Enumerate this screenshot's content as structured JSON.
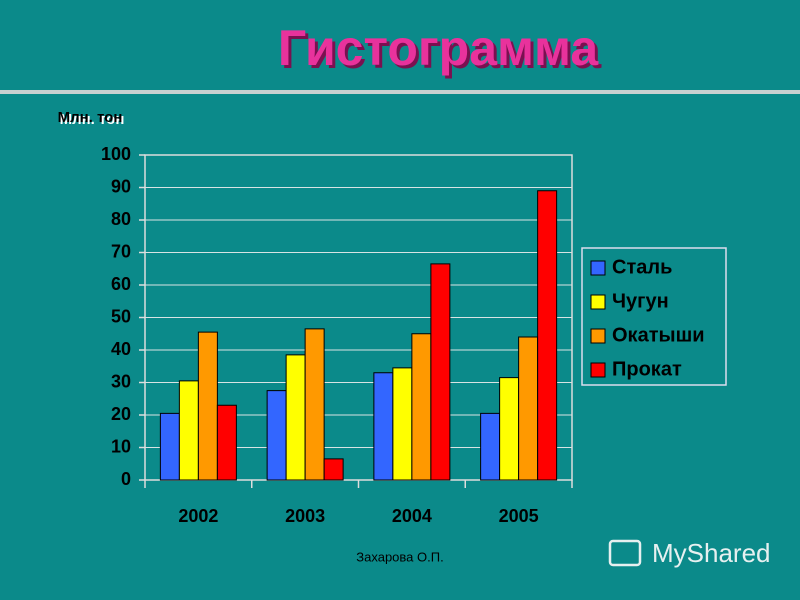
{
  "chart_data": {
    "type": "bar",
    "title": "Гистограмма",
    "y_label": "Млн. тон",
    "categories": [
      "2002",
      "2003",
      "2004",
      "2005"
    ],
    "series": [
      {
        "name": "Сталь",
        "color": "#3366ff",
        "values": [
          20.5,
          27.5,
          33,
          20.5
        ]
      },
      {
        "name": "Чугун",
        "color": "#ffff00",
        "values": [
          30.5,
          38.5,
          34.5,
          31.5
        ]
      },
      {
        "name": "Окатыши",
        "color": "#ff9900",
        "values": [
          45.5,
          46.5,
          45,
          44
        ]
      },
      {
        "name": "Прокат",
        "color": "#ff0000",
        "values": [
          23,
          6.5,
          66.5,
          89
        ]
      }
    ],
    "ylim": [
      0,
      100
    ],
    "yticks": [
      0,
      10,
      20,
      30,
      40,
      50,
      60,
      70,
      80,
      90,
      100
    ],
    "grid": true,
    "legend": "right"
  },
  "footer": "Захарова О.П.",
  "watermark": "MyShared"
}
